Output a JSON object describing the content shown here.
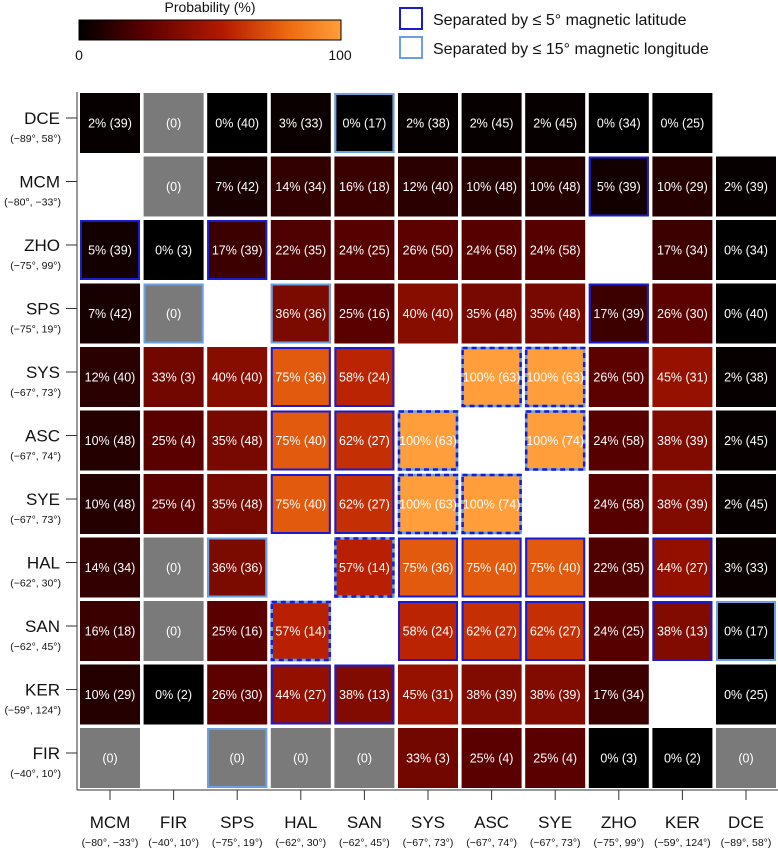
{
  "chart_data": {
    "type": "heatmap",
    "colorbar": {
      "title": "Probability (%)",
      "min_label": "0",
      "max_label": "100",
      "range": [
        0,
        100
      ]
    },
    "legend": [
      {
        "label": "Separated by ≤ 5° magnetic latitude",
        "color": "#1a1ad0",
        "style": "solid"
      },
      {
        "label": "Separated by ≤ 15° magnetic longitude",
        "color": "#6a9fe0",
        "style": "solid"
      }
    ],
    "rows": [
      {
        "code": "DCE",
        "coord": "(−89°, 58°)"
      },
      {
        "code": "MCM",
        "coord": "(−80°, −33°)"
      },
      {
        "code": "ZHO",
        "coord": "(−75°, 99°)"
      },
      {
        "code": "SPS",
        "coord": "(−75°, 19°)"
      },
      {
        "code": "SYS",
        "coord": "(−67°, 73°)"
      },
      {
        "code": "ASC",
        "coord": "(−67°, 74°)"
      },
      {
        "code": "SYE",
        "coord": "(−67°, 73°)"
      },
      {
        "code": "HAL",
        "coord": "(−62°, 30°)"
      },
      {
        "code": "SAN",
        "coord": "(−62°, 45°)"
      },
      {
        "code": "KER",
        "coord": "(−59°, 124°)"
      },
      {
        "code": "FIR",
        "coord": "(−40°, 10°)"
      }
    ],
    "columns": [
      {
        "code": "MCM",
        "coord": "(−80°, −33°)"
      },
      {
        "code": "FIR",
        "coord": "(−40°, 10°)"
      },
      {
        "code": "SPS",
        "coord": "(−75°, 19°)"
      },
      {
        "code": "HAL",
        "coord": "(−62°, 30°)"
      },
      {
        "code": "SAN",
        "coord": "(−62°, 45°)"
      },
      {
        "code": "SYS",
        "coord": "(−67°, 73°)"
      },
      {
        "code": "ASC",
        "coord": "(−67°, 74°)"
      },
      {
        "code": "SYE",
        "coord": "(−67°, 73°)"
      },
      {
        "code": "ZHO",
        "coord": "(−75°, 99°)"
      },
      {
        "code": "KER",
        "coord": "(−59°, 124°)"
      },
      {
        "code": "DCE",
        "coord": "(−89°, 58°)"
      }
    ],
    "cells": [
      [
        {
          "label": "2% (39)",
          "value": 2
        },
        {
          "label": "(0)",
          "value": null
        },
        {
          "label": "0% (40)",
          "value": 0
        },
        {
          "label": "3% (33)",
          "value": 3
        },
        {
          "label": "0% (17)",
          "value": 0,
          "border": "lon"
        },
        {
          "label": "2% (38)",
          "value": 2
        },
        {
          "label": "2% (45)",
          "value": 2
        },
        {
          "label": "2% (45)",
          "value": 2
        },
        {
          "label": "0% (34)",
          "value": 0
        },
        {
          "label": "0% (25)",
          "value": 0
        },
        {
          "blank": true
        }
      ],
      [
        {
          "blank": true
        },
        {
          "label": "(0)",
          "value": null
        },
        {
          "label": "7% (42)",
          "value": 7
        },
        {
          "label": "14% (34)",
          "value": 14
        },
        {
          "label": "16% (18)",
          "value": 16
        },
        {
          "label": "12% (40)",
          "value": 12
        },
        {
          "label": "10% (48)",
          "value": 10
        },
        {
          "label": "10% (48)",
          "value": 10
        },
        {
          "label": "5% (39)",
          "value": 5,
          "border": "lat"
        },
        {
          "label": "10% (29)",
          "value": 10
        },
        {
          "label": "2% (39)",
          "value": 2
        }
      ],
      [
        {
          "label": "5% (39)",
          "value": 5,
          "border": "lat"
        },
        {
          "label": "0% (3)",
          "value": 0
        },
        {
          "label": "17% (39)",
          "value": 17,
          "border": "lat"
        },
        {
          "label": "22% (35)",
          "value": 22
        },
        {
          "label": "24% (25)",
          "value": 24
        },
        {
          "label": "26% (50)",
          "value": 26
        },
        {
          "label": "24% (58)",
          "value": 24
        },
        {
          "label": "24% (58)",
          "value": 24
        },
        {
          "blank": true
        },
        {
          "label": "17% (34)",
          "value": 17
        },
        {
          "label": "0% (34)",
          "value": 0
        }
      ],
      [
        {
          "label": "7% (42)",
          "value": 7
        },
        {
          "label": "(0)",
          "value": null,
          "border": "lon"
        },
        {
          "blank": true
        },
        {
          "label": "36% (36)",
          "value": 36,
          "border": "lon"
        },
        {
          "label": "25% (16)",
          "value": 25
        },
        {
          "label": "40% (40)",
          "value": 40
        },
        {
          "label": "35% (48)",
          "value": 35
        },
        {
          "label": "35% (48)",
          "value": 35
        },
        {
          "label": "17% (39)",
          "value": 17,
          "border": "lat"
        },
        {
          "label": "26% (30)",
          "value": 26
        },
        {
          "label": "0% (40)",
          "value": 0
        }
      ],
      [
        {
          "label": "12% (40)",
          "value": 12
        },
        {
          "label": "33% (3)",
          "value": 33
        },
        {
          "label": "40% (40)",
          "value": 40
        },
        {
          "label": "75% (36)",
          "value": 75,
          "border": "lat"
        },
        {
          "label": "58% (24)",
          "value": 58,
          "border": "lat"
        },
        {
          "blank": true
        },
        {
          "label": "100% (63)",
          "value": 100,
          "border": "both"
        },
        {
          "label": "100% (63)",
          "value": 100,
          "border": "both"
        },
        {
          "label": "26% (50)",
          "value": 26
        },
        {
          "label": "45% (31)",
          "value": 45
        },
        {
          "label": "2% (38)",
          "value": 2
        }
      ],
      [
        {
          "label": "10% (48)",
          "value": 10
        },
        {
          "label": "25% (4)",
          "value": 25
        },
        {
          "label": "35% (48)",
          "value": 35
        },
        {
          "label": "75% (40)",
          "value": 75,
          "border": "lat"
        },
        {
          "label": "62% (27)",
          "value": 62,
          "border": "lat"
        },
        {
          "label": "100% (63)",
          "value": 100,
          "border": "both"
        },
        {
          "blank": true
        },
        {
          "label": "100% (74)",
          "value": 100,
          "border": "both"
        },
        {
          "label": "24% (58)",
          "value": 24
        },
        {
          "label": "38% (39)",
          "value": 38
        },
        {
          "label": "2% (45)",
          "value": 2
        }
      ],
      [
        {
          "label": "10% (48)",
          "value": 10
        },
        {
          "label": "25% (4)",
          "value": 25
        },
        {
          "label": "35% (48)",
          "value": 35
        },
        {
          "label": "75% (40)",
          "value": 75,
          "border": "lat"
        },
        {
          "label": "62% (27)",
          "value": 62,
          "border": "lat"
        },
        {
          "label": "100% (63)",
          "value": 100,
          "border": "both"
        },
        {
          "label": "100% (74)",
          "value": 100,
          "border": "both"
        },
        {
          "blank": true
        },
        {
          "label": "24% (58)",
          "value": 24
        },
        {
          "label": "38% (39)",
          "value": 38
        },
        {
          "label": "2% (45)",
          "value": 2
        }
      ],
      [
        {
          "label": "14% (34)",
          "value": 14
        },
        {
          "label": "(0)",
          "value": null
        },
        {
          "label": "36% (36)",
          "value": 36,
          "border": "lon"
        },
        {
          "blank": true
        },
        {
          "label": "57% (14)",
          "value": 57,
          "border": "both"
        },
        {
          "label": "75% (36)",
          "value": 75,
          "border": "lat"
        },
        {
          "label": "75% (40)",
          "value": 75,
          "border": "lat"
        },
        {
          "label": "75% (40)",
          "value": 75,
          "border": "lat"
        },
        {
          "label": "22% (35)",
          "value": 22
        },
        {
          "label": "44% (27)",
          "value": 44,
          "border": "lat"
        },
        {
          "label": "3% (33)",
          "value": 3
        }
      ],
      [
        {
          "label": "16% (18)",
          "value": 16
        },
        {
          "label": "(0)",
          "value": null
        },
        {
          "label": "25% (16)",
          "value": 25
        },
        {
          "label": "57% (14)",
          "value": 57,
          "border": "both"
        },
        {
          "blank": true
        },
        {
          "label": "58% (24)",
          "value": 58,
          "border": "lat"
        },
        {
          "label": "62% (27)",
          "value": 62,
          "border": "lat"
        },
        {
          "label": "62% (27)",
          "value": 62,
          "border": "lat"
        },
        {
          "label": "24% (25)",
          "value": 24
        },
        {
          "label": "38% (13)",
          "value": 38,
          "border": "lat"
        },
        {
          "label": "0% (17)",
          "value": 0,
          "border": "lon"
        }
      ],
      [
        {
          "label": "10% (29)",
          "value": 10
        },
        {
          "label": "0% (2)",
          "value": 0
        },
        {
          "label": "26% (30)",
          "value": 26
        },
        {
          "label": "44% (27)",
          "value": 44,
          "border": "lat"
        },
        {
          "label": "38% (13)",
          "value": 38,
          "border": "lat"
        },
        {
          "label": "45% (31)",
          "value": 45
        },
        {
          "label": "38% (39)",
          "value": 38
        },
        {
          "label": "38% (39)",
          "value": 38
        },
        {
          "label": "17% (34)",
          "value": 17
        },
        {
          "blank": true
        },
        {
          "label": "0% (25)",
          "value": 0
        }
      ],
      [
        {
          "label": "(0)",
          "value": null
        },
        {
          "blank": true
        },
        {
          "label": "(0)",
          "value": null,
          "border": "lon"
        },
        {
          "label": "(0)",
          "value": null
        },
        {
          "label": "(0)",
          "value": null
        },
        {
          "label": "33% (3)",
          "value": 33
        },
        {
          "label": "25% (4)",
          "value": 25
        },
        {
          "label": "25% (4)",
          "value": 25
        },
        {
          "label": "0% (3)",
          "value": 0
        },
        {
          "label": "0% (2)",
          "value": 0
        },
        {
          "label": "(0)",
          "value": null
        }
      ]
    ],
    "colors": {
      "lat_border": "#1a1ad0",
      "lon_border": "#6a9fe0",
      "no_data_fill": "#7a7a7a",
      "colormap": [
        "#000000",
        "#5a0000",
        "#b41a00",
        "#ee6a10",
        "#ff9e3a"
      ]
    }
  }
}
